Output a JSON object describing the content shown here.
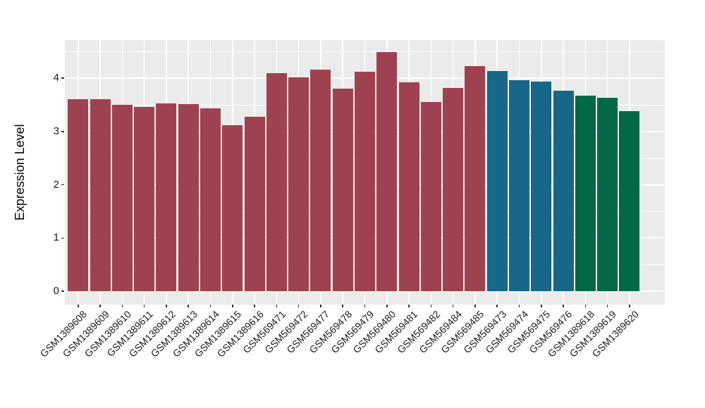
{
  "chart_data": {
    "type": "bar",
    "title": "",
    "xlabel": "",
    "ylabel": "Expression Level",
    "ylim": [
      0,
      4.49
    ],
    "yticks": [
      0,
      1,
      2,
      3,
      4
    ],
    "grid": "major and minor horizontal white gridlines, vertical white gridline at each category center, light gray panel",
    "legend": false,
    "panel_background": "#EBEBEB",
    "gridline_color": "#FFFFFF",
    "tick_label_color": "#1a1a1a",
    "categories": [
      "GSM1389608",
      "GSM1389609",
      "GSM1389610",
      "GSM1389611",
      "GSM1389612",
      "GSM1389613",
      "GSM1389614",
      "GSM1389615",
      "GSM1389616",
      "GSM569471",
      "GSM569472",
      "GSM569477",
      "GSM569478",
      "GSM569479",
      "GSM569480",
      "GSM569481",
      "GSM569482",
      "GSM569484",
      "GSM569485",
      "GSM569473",
      "GSM569474",
      "GSM569475",
      "GSM569476",
      "GSM1389618",
      "GSM1389619",
      "GSM1389620"
    ],
    "values": [
      3.6,
      3.61,
      3.5,
      3.46,
      3.53,
      3.52,
      3.43,
      3.12,
      3.28,
      4.1,
      4.01,
      4.16,
      3.81,
      4.12,
      4.49,
      3.92,
      3.56,
      3.82,
      4.23,
      4.14,
      3.96,
      3.94,
      3.76,
      3.67,
      3.63,
      3.38
    ],
    "groups": [
      "g1",
      "g1",
      "g1",
      "g1",
      "g1",
      "g1",
      "g1",
      "g1",
      "g1",
      "g1",
      "g1",
      "g1",
      "g1",
      "g1",
      "g1",
      "g1",
      "g1",
      "g1",
      "g1",
      "g2",
      "g2",
      "g2",
      "g2",
      "g3",
      "g3",
      "g3"
    ],
    "group_colors": {
      "g1": "#9E4252",
      "g2": "#17678A",
      "g3": "#016948"
    }
  }
}
